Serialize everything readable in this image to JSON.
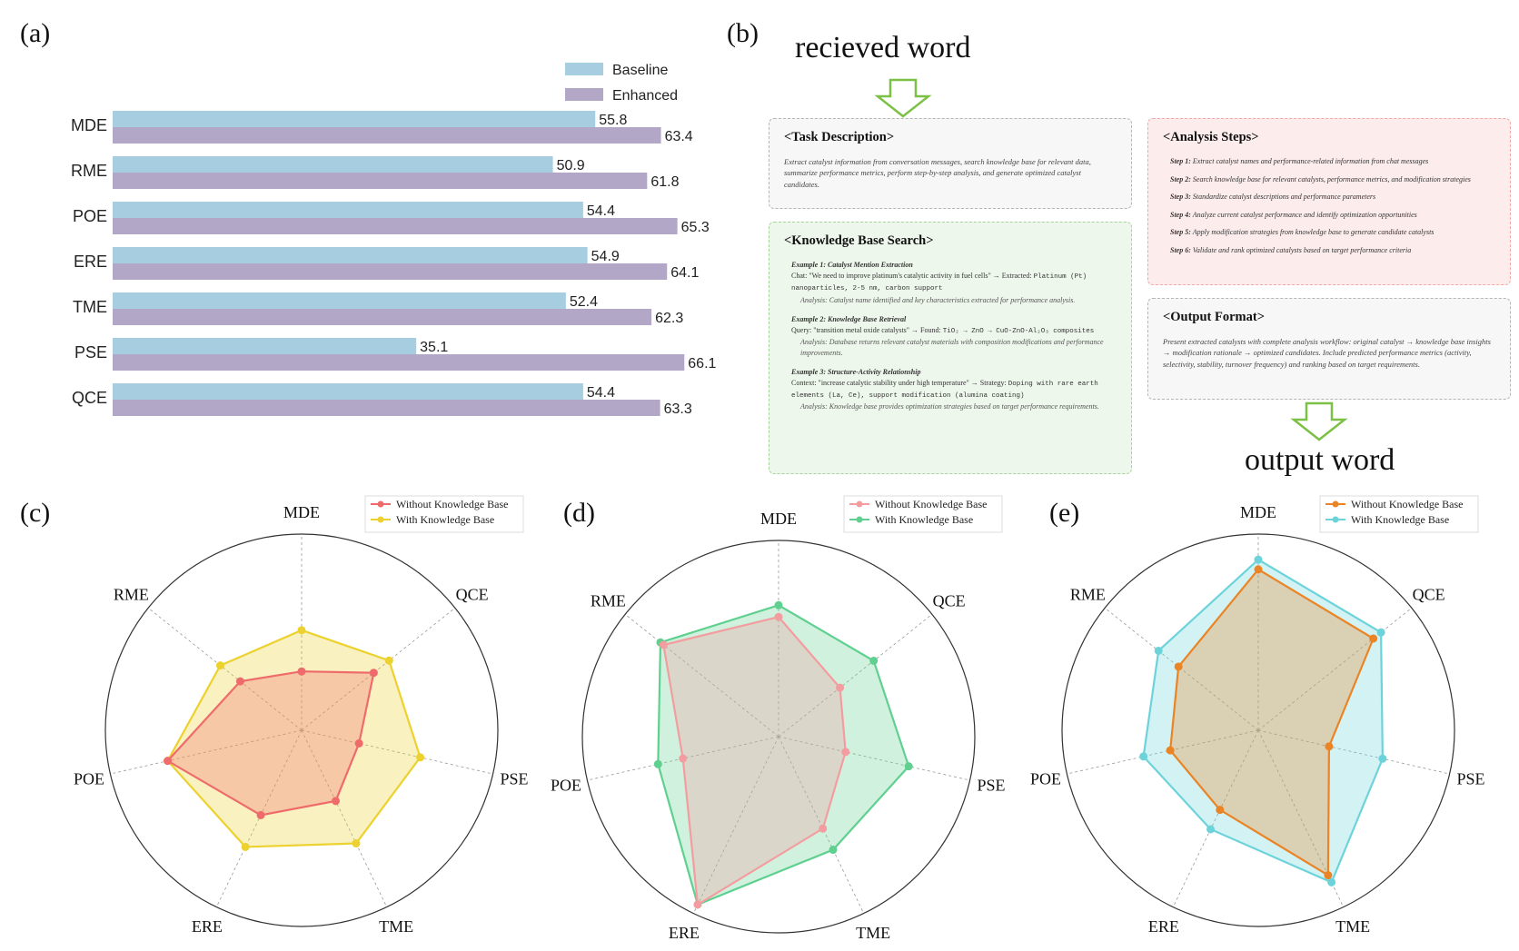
{
  "panel_labels": [
    "(a)",
    "(b)",
    "(c)",
    "(d)",
    "(e)"
  ],
  "colors": {
    "baseline": "#a7cde0",
    "enhanced": "#b3a7c7",
    "c_without": "#ef6b6b",
    "c_with": "#ecd12f",
    "d_without": "#f49da0",
    "d_with": "#5fd08f",
    "e_without": "#ea8424",
    "e_with": "#6dd3db",
    "task_box_bg": "#f7f7f7",
    "kb_box_bg": "#eef7ec",
    "steps_box_bg": "#fdecec",
    "output_box_bg": "#f7f7f7",
    "arrow": "#7cc046"
  },
  "chart_data": [
    {
      "id": "a",
      "type": "bar",
      "orientation": "horizontal",
      "categories": [
        "MDE",
        "RME",
        "POE",
        "ERE",
        "TME",
        "PSE",
        "QCE"
      ],
      "series": [
        {
          "name": "Baseline",
          "values": [
            55.8,
            50.9,
            54.4,
            54.9,
            52.4,
            35.1,
            54.4
          ]
        },
        {
          "name": "Enhanced",
          "values": [
            63.4,
            61.8,
            65.3,
            64.1,
            62.3,
            66.1,
            63.3
          ]
        }
      ],
      "xlim": [
        0,
        70
      ],
      "legend": "top-right"
    },
    {
      "id": "c",
      "type": "radar",
      "axes": [
        "MDE",
        "QCE",
        "PSE",
        "TME",
        "ERE",
        "POE",
        "RME"
      ],
      "rlim": [
        0,
        100
      ],
      "series": [
        {
          "name": "Without Knowledge Base",
          "values": [
            30,
            47,
            30,
            40,
            48,
            70,
            40
          ]
        },
        {
          "name": "With Knowledge Base",
          "values": [
            51,
            57,
            62,
            64,
            66,
            70,
            53
          ]
        }
      ],
      "legend": "top-right"
    },
    {
      "id": "d",
      "type": "radar",
      "axes": [
        "MDE",
        "QCE",
        "PSE",
        "TME",
        "ERE",
        "POE",
        "RME"
      ],
      "rlim": [
        0,
        100
      ],
      "series": [
        {
          "name": "Without Knowledge Base",
          "values": [
            61,
            40,
            35,
            52,
            95,
            50,
            75
          ]
        },
        {
          "name": "With Knowledge Base",
          "values": [
            67,
            62,
            68,
            64,
            95,
            63,
            77
          ]
        }
      ],
      "legend": "top-right"
    },
    {
      "id": "e",
      "type": "radar",
      "axes": [
        "MDE",
        "QCE",
        "PSE",
        "TME",
        "ERE",
        "POE",
        "RME"
      ],
      "rlim": [
        0,
        100
      ],
      "series": [
        {
          "name": "Without Knowledge Base",
          "values": [
            82,
            75,
            37,
            82,
            45,
            46,
            52
          ]
        },
        {
          "name": "With Knowledge Base",
          "values": [
            87,
            80,
            65,
            86,
            56,
            60,
            65
          ]
        }
      ],
      "legend": "top-right"
    }
  ],
  "prompt": {
    "received_word": "recieved word",
    "output_word": "output word",
    "task": {
      "title": "<Task Description>",
      "body": "Extract catalyst information from conversation messages, search knowledge base for relevant data, summarize performance metrics, perform step-by-step analysis, and generate optimized catalyst candidates."
    },
    "kb": {
      "title": "<Knowledge Base Search>",
      "examples": [
        {
          "title": "Example 1: Catalyst Mention Extraction",
          "text": "Chat: \"We need to improve platinum's catalytic activity in fuel cells\" → Extracted:",
          "mono": "Platinum (Pt) nanoparticles, 2-5 nm, carbon support",
          "analysis": "Analysis: Catalyst name identified and key characteristics extracted for performance analysis."
        },
        {
          "title": "Example 2: Knowledge Base Retrieval",
          "text": "Query: \"transition metal oxide catalysts\" → Found:",
          "mono": "TiO₂ → ZnO → CuO-ZnO-Al₂O₃ composites",
          "analysis": "Analysis: Database returns relevant catalyst materials with composition modifications and performance improvements."
        },
        {
          "title": "Example 3: Structure-Activity Relationship",
          "text": "Context: \"increase catalytic stability under high temperature\" → Strategy:",
          "mono": "Doping with rare earth elements (La, Ce), support modification (alumina coating)",
          "analysis": "Analysis: Knowledge base provides optimization strategies based on target performance requirements."
        }
      ]
    },
    "steps": {
      "title": "<Analysis Steps>",
      "items": [
        {
          "label": "Step 1:",
          "text": "Extract catalyst names and performance-related information from chat messages"
        },
        {
          "label": "Step 2:",
          "text": "Search knowledge base for relevant catalysts, performance metrics, and modification strategies"
        },
        {
          "label": "Step 3:",
          "text": "Standardize catalyst descriptions and performance parameters"
        },
        {
          "label": "Step 4:",
          "text": "Analyze current catalyst performance and identify optimization opportunities"
        },
        {
          "label": "Step 5:",
          "text": "Apply modification strategies from knowledge base to generate candidate catalysts"
        },
        {
          "label": "Step 6:",
          "text": "Validate and rank optimized catalysts based on target performance criteria"
        }
      ]
    },
    "output": {
      "title": "<Output Format>",
      "body": "Present extracted catalysts with complete analysis workflow: original catalyst → knowledge base insights → modification rationale → optimized candidates. Include predicted performance metrics (activity, selectivity, stability, turnover frequency) and ranking based on target requirements."
    }
  }
}
